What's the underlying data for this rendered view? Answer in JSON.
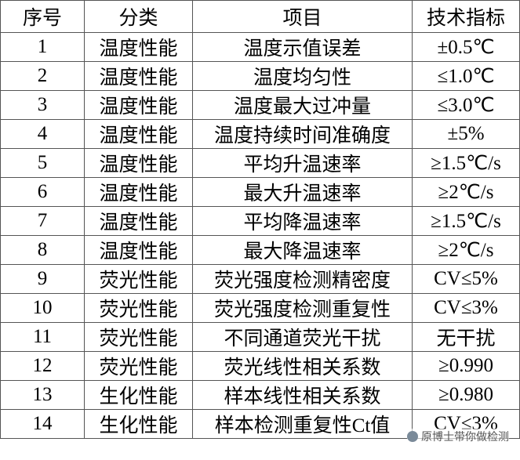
{
  "table": {
    "header": [
      "序号",
      "分类",
      "项目",
      "技术指标"
    ],
    "rows": [
      [
        "1",
        "温度性能",
        "温度示值误差",
        "±0.5℃"
      ],
      [
        "2",
        "温度性能",
        "温度均匀性",
        "≤1.0℃"
      ],
      [
        "3",
        "温度性能",
        "温度最大过冲量",
        "≤3.0℃"
      ],
      [
        "4",
        "温度性能",
        "温度持续时间准确度",
        "±5%"
      ],
      [
        "5",
        "温度性能",
        "平均升温速率",
        "≥1.5℃/s"
      ],
      [
        "6",
        "温度性能",
        "最大升温速率",
        "≥2℃/s"
      ],
      [
        "7",
        "温度性能",
        "平均降温速率",
        "≥1.5℃/s"
      ],
      [
        "8",
        "温度性能",
        "最大降温速率",
        "≥2℃/s"
      ],
      [
        "9",
        "荧光性能",
        "荧光强度检测精密度",
        "CV≤5%"
      ],
      [
        "10",
        "荧光性能",
        "荧光强度检测重复性",
        "CV≤3%"
      ],
      [
        "11",
        "荧光性能",
        "不同通道荧光干扰",
        "无干扰"
      ],
      [
        "12",
        "荧光性能",
        "荧光线性相关系数",
        "≥0.990"
      ],
      [
        "13",
        "生化性能",
        "样本线性相关系数",
        "≥0.980"
      ],
      [
        "14",
        "生化性能",
        "样本检测重复性Ct值",
        "CV≤3%"
      ]
    ]
  },
  "watermark": "原博士带你做检测"
}
